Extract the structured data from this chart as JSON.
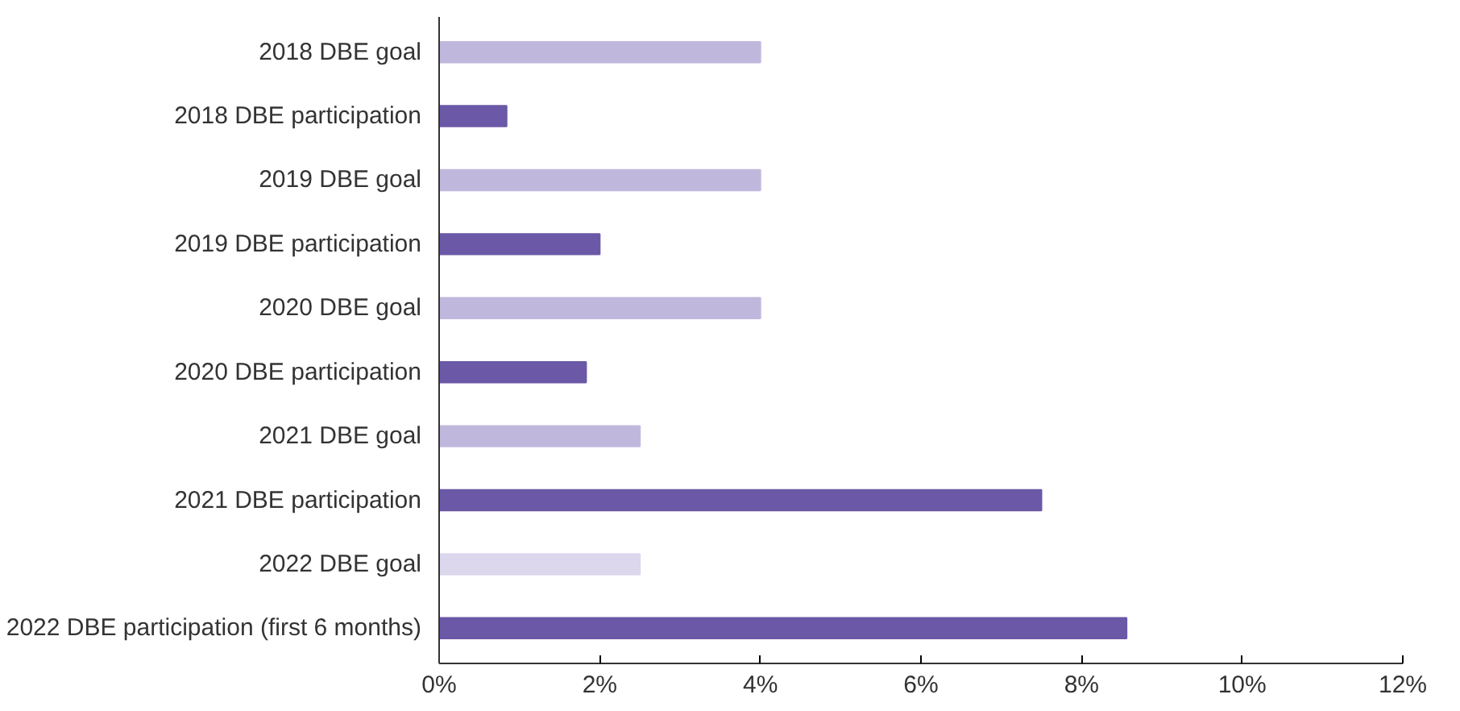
{
  "chart_data": {
    "type": "bar",
    "orientation": "horizontal",
    "categories": [
      "2018 DBE goal",
      "2018 DBE participation",
      "2019 DBE goal",
      "2019 DBE participation",
      "2020 DBE goal",
      "2020 DBE participation",
      "2021 DBE goal",
      "2021 DBE participation",
      "2022 DBE goal",
      "2022 DBE participation (first 6 months)"
    ],
    "values": [
      4.0,
      0.84,
      4.0,
      2.0,
      4.0,
      1.83,
      2.5,
      7.5,
      2.5,
      8.56
    ],
    "colors": [
      "#c0b8dc",
      "#6b58a6",
      "#c0b8dc",
      "#6b58a6",
      "#c0b8dc",
      "#6b58a6",
      "#c0b8dc",
      "#6b58a6",
      "#dcd7ec",
      "#6b58a6"
    ],
    "xlim": [
      0,
      12
    ],
    "xticks": [
      {
        "value": 0,
        "label": "0%"
      },
      {
        "value": 2,
        "label": "2%"
      },
      {
        "value": 4,
        "label": "4%"
      },
      {
        "value": 6,
        "label": "6%"
      },
      {
        "value": 8,
        "label": "8%"
      },
      {
        "value": 10,
        "label": "10%"
      },
      {
        "value": 12,
        "label": "12%"
      }
    ],
    "grid": false
  }
}
